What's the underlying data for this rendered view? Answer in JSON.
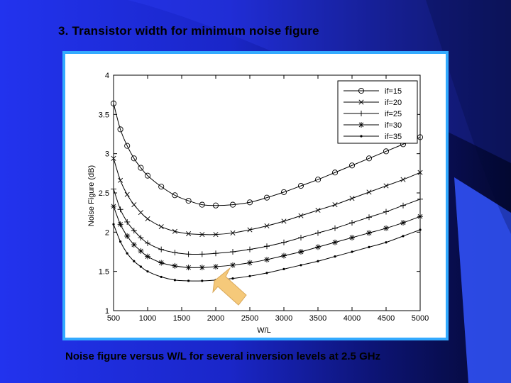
{
  "slide": {
    "title": "3. Transistor width for minimum noise figure",
    "caption": "Noise figure versus W/L for several inversion levels at 2.5 GHz"
  },
  "colors": {
    "background_start": "#2233ee",
    "background_end": "#040830",
    "frame_border": "#33aaff",
    "arrow": "#f5c97a"
  },
  "chart_data": {
    "type": "line",
    "title": "",
    "xlabel": "W/L",
    "ylabel": "Noise Figure (dB)",
    "xlim": [
      500,
      5000
    ],
    "ylim": [
      1,
      4
    ],
    "xticks": [
      500,
      1000,
      1500,
      2000,
      2500,
      3000,
      3500,
      4000,
      4500,
      5000
    ],
    "yticks": [
      1,
      1.5,
      2,
      2.5,
      3,
      3.5,
      4
    ],
    "ytick_labels": [
      "1",
      "1.5",
      "2",
      "2.5",
      "3",
      "3.5",
      "4"
    ],
    "grid": false,
    "legend_position": "top-right",
    "series": [
      {
        "name": "if=15",
        "marker": "o",
        "x": [
          500,
          600,
          700,
          800,
          900,
          1000,
          1200,
          1400,
          1600,
          1800,
          2000,
          2250,
          2500,
          2750,
          3000,
          3250,
          3500,
          3750,
          4000,
          4250,
          4500,
          4750,
          5000
        ],
        "y": [
          3.64,
          3.31,
          3.1,
          2.94,
          2.82,
          2.72,
          2.58,
          2.47,
          2.4,
          2.35,
          2.34,
          2.35,
          2.38,
          2.44,
          2.51,
          2.59,
          2.67,
          2.76,
          2.85,
          2.94,
          3.03,
          3.12,
          3.21
        ]
      },
      {
        "name": "if=20",
        "marker": "x",
        "x": [
          500,
          600,
          700,
          800,
          900,
          1000,
          1200,
          1400,
          1600,
          1800,
          2000,
          2250,
          2500,
          2750,
          3000,
          3250,
          3500,
          3750,
          4000,
          4250,
          4500,
          4750,
          5000
        ],
        "y": [
          2.94,
          2.66,
          2.48,
          2.35,
          2.25,
          2.17,
          2.07,
          2.01,
          1.98,
          1.97,
          1.97,
          1.99,
          2.03,
          2.08,
          2.14,
          2.21,
          2.28,
          2.35,
          2.43,
          2.51,
          2.59,
          2.67,
          2.76
        ]
      },
      {
        "name": "if=25",
        "marker": "+",
        "x": [
          500,
          600,
          700,
          800,
          900,
          1000,
          1200,
          1400,
          1600,
          1800,
          2000,
          2250,
          2500,
          2750,
          3000,
          3250,
          3500,
          3750,
          4000,
          4250,
          4500,
          4750,
          5000
        ],
        "y": [
          2.55,
          2.29,
          2.13,
          2.02,
          1.93,
          1.86,
          1.78,
          1.74,
          1.72,
          1.72,
          1.73,
          1.75,
          1.78,
          1.82,
          1.87,
          1.93,
          1.99,
          2.05,
          2.12,
          2.19,
          2.26,
          2.34,
          2.42
        ]
      },
      {
        "name": "if=30",
        "marker": "*",
        "x": [
          500,
          600,
          700,
          800,
          900,
          1000,
          1200,
          1400,
          1600,
          1800,
          2000,
          2250,
          2500,
          2750,
          3000,
          3250,
          3500,
          3750,
          4000,
          4250,
          4500,
          4750,
          5000
        ],
        "y": [
          2.33,
          2.1,
          1.95,
          1.84,
          1.76,
          1.69,
          1.61,
          1.57,
          1.55,
          1.55,
          1.56,
          1.58,
          1.61,
          1.65,
          1.7,
          1.75,
          1.81,
          1.87,
          1.93,
          1.99,
          2.05,
          2.12,
          2.2
        ]
      },
      {
        "name": "if=35",
        "marker": ".",
        "x": [
          500,
          600,
          700,
          800,
          900,
          1000,
          1200,
          1400,
          1600,
          1800,
          2000,
          2250,
          2500,
          2750,
          3000,
          3250,
          3500,
          3750,
          4000,
          4250,
          4500,
          4750,
          5000
        ],
        "y": [
          2.1,
          1.88,
          1.73,
          1.63,
          1.56,
          1.5,
          1.43,
          1.39,
          1.38,
          1.38,
          1.39,
          1.41,
          1.44,
          1.48,
          1.53,
          1.58,
          1.63,
          1.69,
          1.75,
          1.81,
          1.87,
          1.95,
          2.03
        ]
      }
    ]
  }
}
